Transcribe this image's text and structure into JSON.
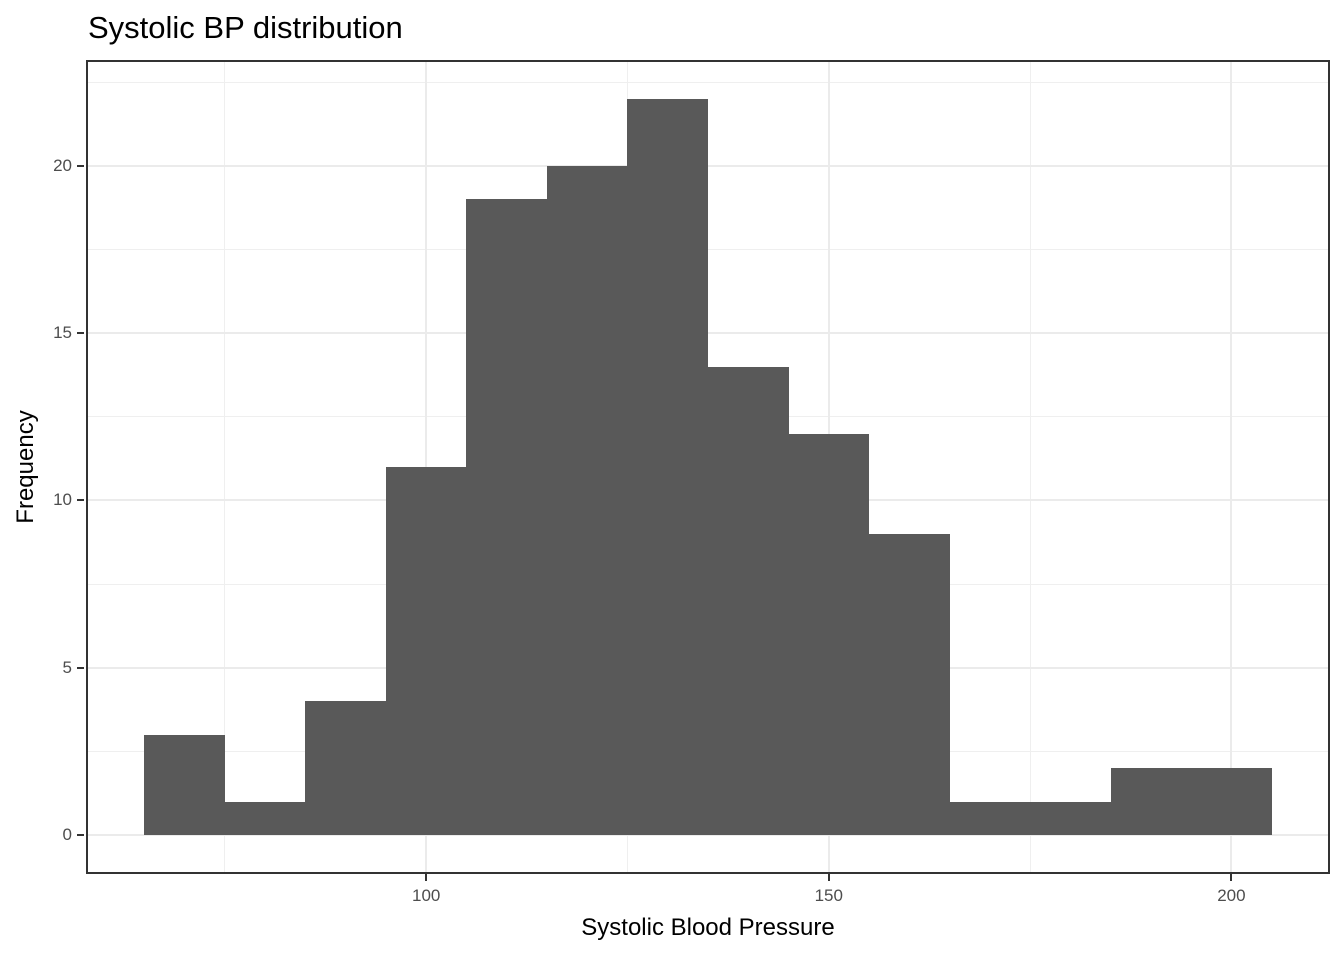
{
  "title": "Systolic BP distribution",
  "chart_data": {
    "type": "bar",
    "subtype": "histogram",
    "title": "Systolic BP distribution",
    "xlabel": "Systolic Blood Pressure",
    "ylabel": "Frequency",
    "bin_width": 10,
    "bin_edges": [
      65,
      75,
      85,
      95,
      105,
      115,
      125,
      135,
      145,
      155,
      165,
      175,
      185,
      195,
      205
    ],
    "counts": [
      3,
      1,
      4,
      11,
      19,
      20,
      22,
      14,
      12,
      9,
      1,
      1,
      2,
      2
    ],
    "total_n": 121,
    "x_major_ticks": [
      100,
      150,
      200
    ],
    "x_minor_gridlines": [
      75,
      125,
      175
    ],
    "y_major_ticks": [
      0,
      5,
      10,
      15,
      20
    ],
    "y_minor_gridlines": [
      2.5,
      7.5,
      12.5,
      17.5,
      22.5
    ],
    "xlim": [
      58,
      212
    ],
    "ylim": [
      -1.1,
      23.1
    ],
    "grid": "on",
    "legend": "none",
    "colors": {
      "bar_fill": "#595959",
      "panel_border": "#333333",
      "gridline_major": "#ebebeb",
      "gridline_minor": "#efefef",
      "tick_mark": "#333333",
      "tick_label": "#4d4d4d",
      "title_text": "#000000",
      "axis_title_text": "#000000",
      "background": "#ffffff"
    }
  }
}
